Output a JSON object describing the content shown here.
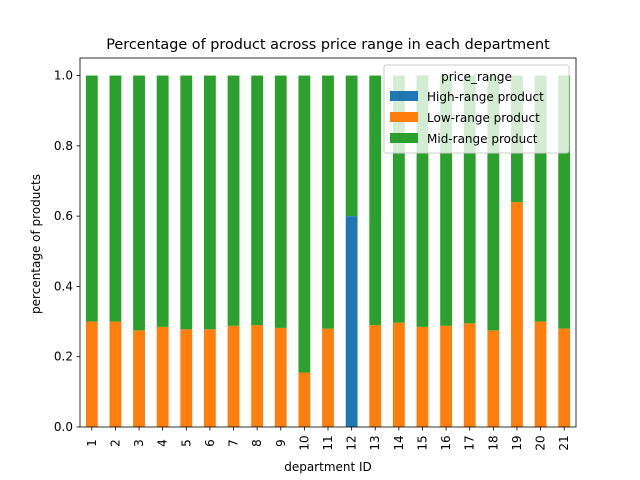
{
  "chart_data": {
    "type": "bar",
    "stacked": true,
    "title": "Percentage of product across price range in each department",
    "xlabel": "department ID",
    "ylabel": "percentage of products",
    "categories": [
      "1",
      "2",
      "3",
      "4",
      "5",
      "6",
      "7",
      "8",
      "9",
      "10",
      "11",
      "12",
      "13",
      "14",
      "15",
      "16",
      "17",
      "18",
      "19",
      "20",
      "21"
    ],
    "ylim": [
      0,
      1.05
    ],
    "yticks": [
      "0.0",
      "0.2",
      "0.4",
      "0.6",
      "0.8",
      "1.0"
    ],
    "grid": false,
    "legend": {
      "title": "price_range",
      "placement": "top-right",
      "alpha": 0.8
    },
    "series": [
      {
        "name": "High-range product",
        "color": "#1f77b4",
        "values": [
          0,
          0,
          0,
          0,
          0,
          0,
          0,
          0,
          0,
          0,
          0,
          0.6,
          0,
          0,
          0,
          0,
          0,
          0,
          0,
          0,
          0
        ]
      },
      {
        "name": "Low-range product",
        "color": "#ff7f0e",
        "values": [
          0.3,
          0.3,
          0.275,
          0.285,
          0.278,
          0.278,
          0.288,
          0.29,
          0.282,
          0.155,
          0.28,
          0,
          0.29,
          0.297,
          0.285,
          0.288,
          0.295,
          0.275,
          0.64,
          0.3,
          0.28
        ]
      },
      {
        "name": "Mid-range product",
        "color": "#2ca02c",
        "values": [
          0.7,
          0.7,
          0.725,
          0.715,
          0.722,
          0.722,
          0.712,
          0.71,
          0.718,
          0.845,
          0.72,
          0.4,
          0.71,
          0.703,
          0.715,
          0.712,
          0.705,
          0.725,
          0.36,
          0.7,
          0.72
        ]
      }
    ]
  }
}
